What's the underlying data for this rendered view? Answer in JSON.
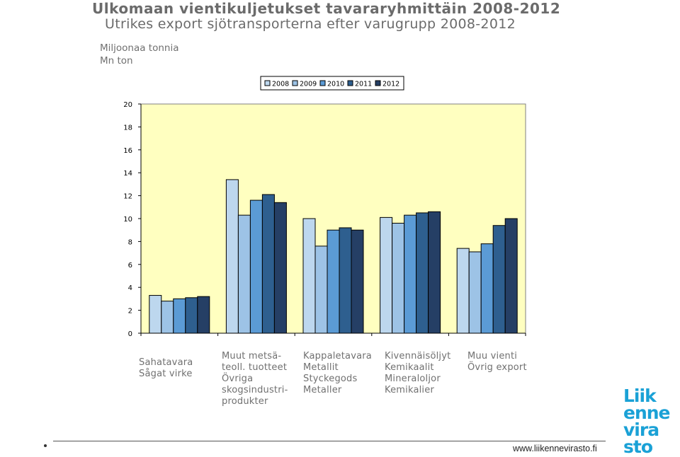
{
  "header": {
    "title_fi": "Ulkomaan vientikuljetukset tavararyhmittäin 2008-2012",
    "title_sv": "Utrikes export sjötransporterna efter varugrupp 2008-2012",
    "unit_fi": "Miljoonaa tonnia",
    "unit_sv": "Mn ton"
  },
  "colors": {
    "2008": "#bdd7ee",
    "2009": "#9dc3e6",
    "2010": "#5b9bd5",
    "2011": "#2e5f8f",
    "2012": "#253f65",
    "plot_bg": "#ffffc0",
    "bar_outline": "#000000"
  },
  "chart_data": {
    "type": "bar",
    "categories": [
      "Sahatavara\nSågat virke",
      "Muut metsä-\nteoll. tuotteet\nÖvriga\nskogsindustri-\nprodukter",
      "Kappaletavara\nMetallit\nStyckegods\nMetaller",
      "Kivennäisöljyt\nKemikaalit\nMineraloljor\nKemikalier",
      "Muu vienti\nÖvrig export"
    ],
    "series": [
      {
        "name": "2008",
        "values": [
          3.3,
          13.4,
          10.0,
          10.1,
          7.4
        ]
      },
      {
        "name": "2009",
        "values": [
          2.8,
          10.3,
          7.6,
          9.6,
          7.1
        ]
      },
      {
        "name": "2010",
        "values": [
          3.0,
          11.6,
          9.0,
          10.3,
          7.8
        ]
      },
      {
        "name": "2011",
        "values": [
          3.1,
          12.1,
          9.2,
          10.5,
          9.4
        ]
      },
      {
        "name": "2012",
        "values": [
          3.2,
          11.4,
          9.0,
          10.6,
          10.0
        ]
      }
    ],
    "yticks": [
      "0",
      "2",
      "4",
      "6",
      "8",
      "10",
      "12",
      "14",
      "16",
      "18",
      "20"
    ],
    "ylim": [
      0,
      20
    ],
    "legend_position": "top-center",
    "grid": false
  },
  "footer": {
    "url": "www.liikennevirasto.fi"
  },
  "logo": {
    "lines": [
      "Liik",
      "enne",
      "vira",
      "sto"
    ]
  }
}
